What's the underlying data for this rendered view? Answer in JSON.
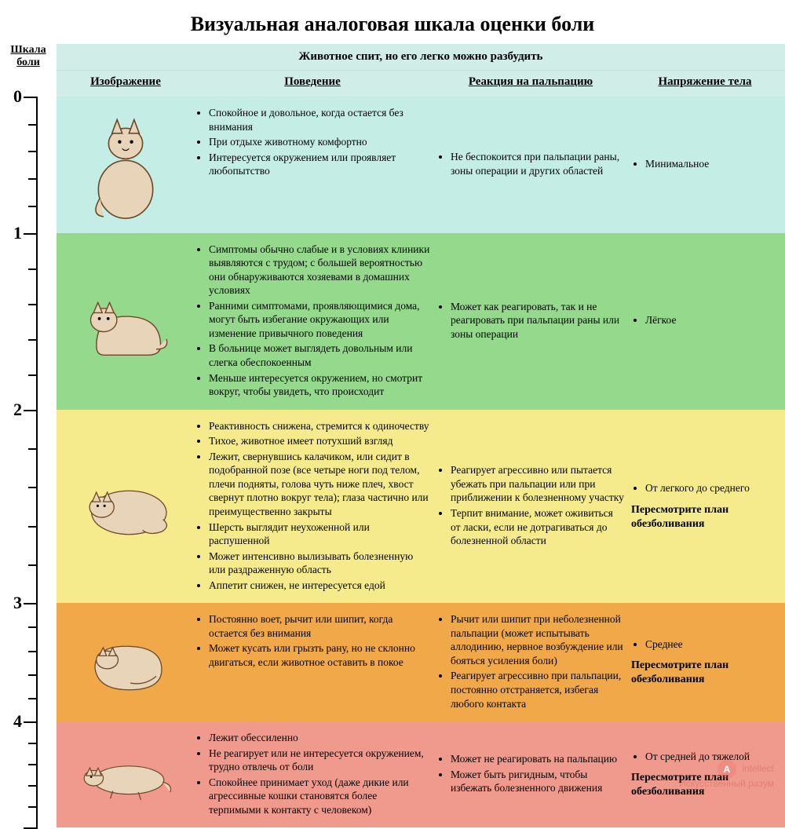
{
  "title": "Визуальная аналоговая шкала оценки боли",
  "scale_label": "Шкала\nболи",
  "header_band": "Животное спит, но его легко можно разбудить",
  "columns": {
    "image": "Изображение",
    "behavior": "Поведение",
    "palpation": "Реакция на пальпацию",
    "tension": "Напряжение тела"
  },
  "scale_numbers": [
    "0",
    "1",
    "2",
    "3",
    "4"
  ],
  "rows": [
    {
      "level": "0",
      "bg": "#c4ede6",
      "behavior": [
        "Спокойное и довольное, когда остается без внимания",
        "При отдыхе животному комфортно",
        "Интересуется окружением или проявляет любопытство"
      ],
      "palpation": [
        "Не беспокоится при пальпации раны, зоны операции и других областей"
      ],
      "tension": [
        "Минимальное"
      ],
      "note": ""
    },
    {
      "level": "1",
      "bg": "#94d98c",
      "behavior": [
        "Симптомы обычно слабые и в условиях клиники выявляются с трудом; с большей вероятностью они обнаруживаются хозяевами в домашних условиях",
        "Ранними симптомами, проявляющимися дома, могут быть избегание окружающих или изменение привычного поведения",
        "В больнице может выглядеть довольным или слегка обеспокоенным",
        "Меньше интересуется окружением, но смотрит вокруг, чтобы увидеть, что происходит"
      ],
      "palpation": [
        "Может как реагировать, так и не реагировать при пальпации раны или зоны операции"
      ],
      "tension": [
        "Лёгкое"
      ],
      "note": ""
    },
    {
      "level": "2",
      "bg": "#f5ea8c",
      "behavior": [
        "Реактивность снижена, стремится к одиночеству",
        "Тихое, животное имеет потухший взгляд",
        "Лежит, свернувшись калачиком, или сидит в подобранной позе (все четыре ноги под телом, плечи подняты, голова чуть ниже плеч, хвост свернут плотно вокруг тела); глаза частично или преимущественно закрыты",
        "Шерсть выглядит неухоженной или распушенной",
        "Может интенсивно вылизывать болезненную или раздраженную область",
        "Аппетит снижен, не интересуется едой"
      ],
      "palpation": [
        "Реагирует агрессивно или пытается убежать при пальпации или при приближении к болезненному участку",
        "Терпит внимание, может оживиться от ласки, если не дотрагиваться до болезненной области"
      ],
      "tension": [
        "От легкого до среднего"
      ],
      "note": "Пересмотрите план обезболивания"
    },
    {
      "level": "3",
      "bg": "#f0a848",
      "behavior": [
        "Постоянно воет, рычит или шипит, когда остается без внимания",
        "Может кусать или грызть рану, но не склонно двигаться, если животное оставить в покое"
      ],
      "palpation": [
        "Рычит или шипит при неболезненной пальпации (может испытывать аллодинию, нервное возбуждение или бояться усиления боли)",
        "Реагирует агрессивно при пальпации, постоянно отстраняется, избегая любого контакта"
      ],
      "tension": [
        "Среднее"
      ],
      "note": "Пересмотрите план обезболивания"
    },
    {
      "level": "4",
      "bg": "#ef9a8c",
      "behavior": [
        "Лежит обессиленно",
        "Не реагирует или не интересуется окружением, трудно отвлечь от боли",
        "Спокойнее принимает уход (даже дикие или агрессивные кошки становятся более терпимыми к контакту с человеком)"
      ],
      "palpation": [
        "Может не реагировать на пальпацию",
        "Может быть ригидным, чтобы избежать болезненного движения"
      ],
      "tension": [
        "От средней до тяжелой"
      ],
      "note": "Пересмотрите план обезболивания"
    }
  ],
  "cat_colors": {
    "fill": "#e8d4b8",
    "stroke": "#6b4a2a",
    "stroke_width": 1.5
  },
  "watermark": {
    "brand": "intellect",
    "tagline": "Искусственный разум"
  }
}
